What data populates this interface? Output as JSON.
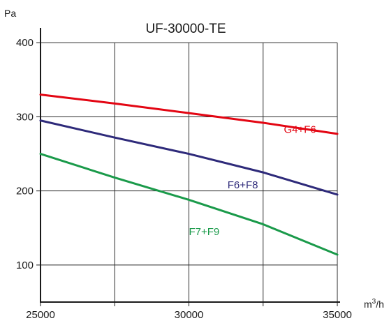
{
  "chart_data": {
    "type": "line",
    "title": "UF-30000-TE",
    "ylabel": "Pa",
    "xlabel_main": "m",
    "xlabel_sup": "3",
    "xlabel_tail": "/h",
    "xlim": [
      25000,
      35000
    ],
    "ylim": [
      50,
      420
    ],
    "x_ticks": [
      25000,
      30000,
      35000
    ],
    "x_tick_labels": [
      "25000",
      "30000",
      "35000"
    ],
    "x_grid": [
      27500,
      32500
    ],
    "y_ticks": [
      100,
      200,
      300,
      400
    ],
    "y_tick_labels": [
      "100",
      "200",
      "300",
      "400"
    ],
    "grid": true,
    "series": [
      {
        "name": "G4+F6",
        "color": "#e30613",
        "x": [
          25000,
          27500,
          30000,
          32500,
          35000
        ],
        "y": [
          330,
          318,
          305,
          292,
          277
        ]
      },
      {
        "name": "F6+F8",
        "color": "#2e2a7a",
        "x": [
          25000,
          27500,
          30000,
          32500,
          35000
        ],
        "y": [
          295,
          272,
          250,
          225,
          195
        ]
      },
      {
        "name": "F7+F9",
        "color": "#1a9a4a",
        "x": [
          25000,
          27500,
          30000,
          32500,
          35000
        ],
        "y": [
          250,
          218,
          188,
          155,
          114
        ]
      }
    ]
  }
}
